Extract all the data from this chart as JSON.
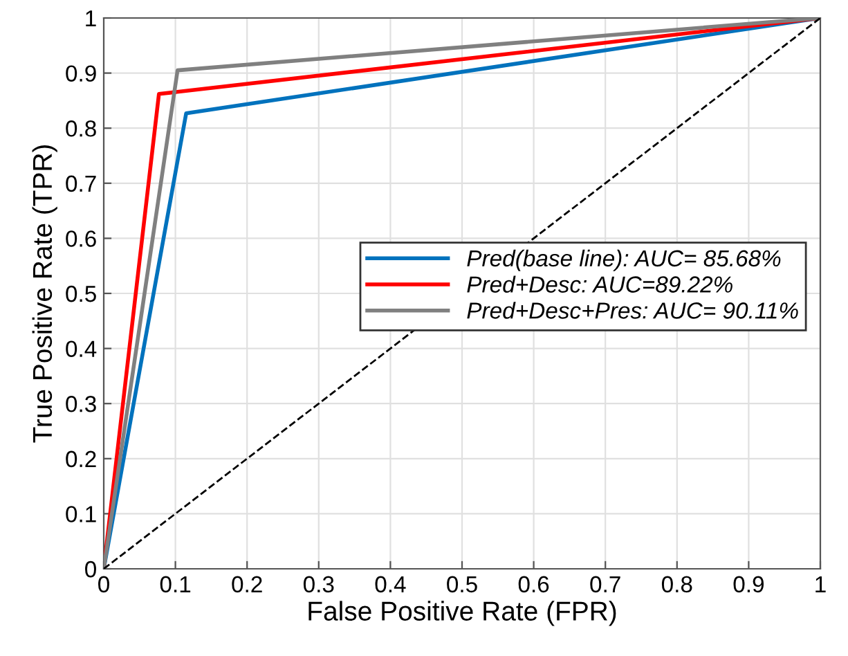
{
  "chart_data": {
    "type": "line",
    "xlabel": "False Positive Rate (FPR)",
    "ylabel": "True Positive Rate (TPR)",
    "xlim": [
      0,
      1
    ],
    "ylim": [
      0,
      1
    ],
    "xticks": [
      0,
      0.1,
      0.2,
      0.3,
      0.4,
      0.5,
      0.6,
      0.7,
      0.8,
      0.9,
      1
    ],
    "yticks": [
      0,
      0.1,
      0.2,
      0.3,
      0.4,
      0.5,
      0.6,
      0.7,
      0.8,
      0.9,
      1
    ],
    "grid": true,
    "legend": "right",
    "line_style": "solid",
    "series": [
      {
        "name": "Pred(base line): AUC= 85.68%",
        "color": "#0072bd",
        "x": [
          0,
          0.115,
          1
        ],
        "values": [
          0,
          0.827,
          1
        ]
      },
      {
        "name": "Pred+Desc: AUC=89.22%",
        "color": "#ff0000",
        "x": [
          0,
          0.077,
          1
        ],
        "values": [
          0,
          0.862,
          1
        ]
      },
      {
        "name": "Pred+Desc+Pres: AUC= 90.11%",
        "color": "#808080",
        "x": [
          0,
          0.103,
          1
        ],
        "values": [
          0,
          0.905,
          1
        ]
      },
      {
        "color": "#000000",
        "line_style": "dashed",
        "x": [
          0,
          1
        ],
        "values": [
          0,
          1
        ]
      }
    ]
  }
}
